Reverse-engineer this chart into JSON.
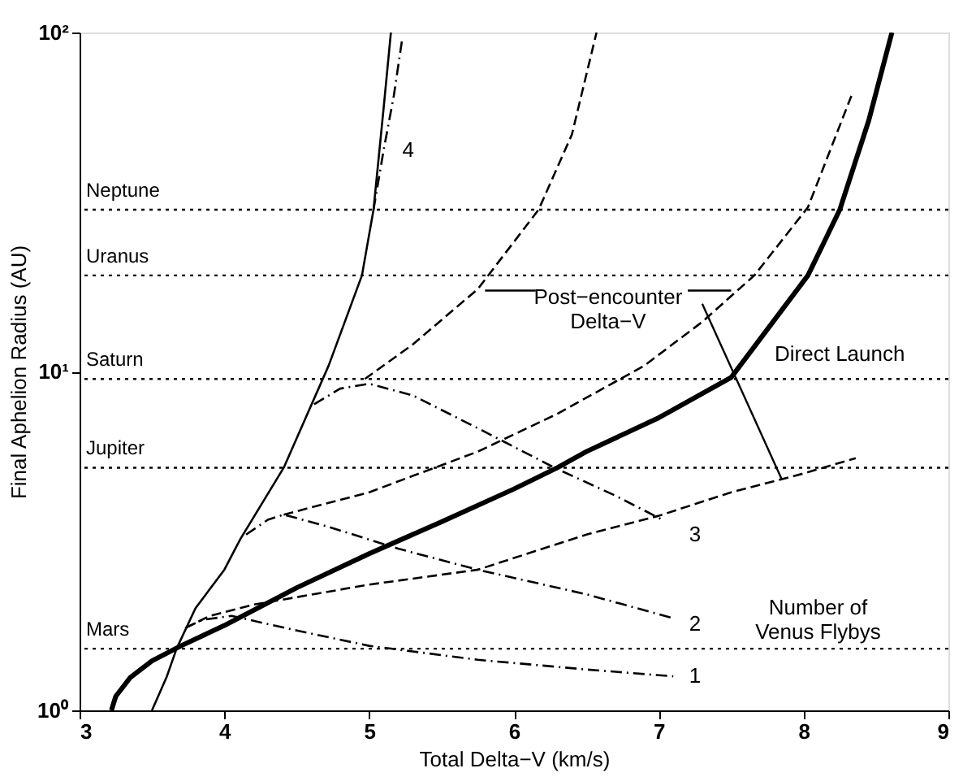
{
  "chart_data": {
    "type": "line",
    "xlabel": "Total Delta−V (km/s)",
    "ylabel": "Final Aphelion Radius (AU)",
    "log": "y",
    "xlim": [
      3,
      9
    ],
    "xticks": [
      3,
      4,
      5,
      6,
      7,
      8,
      9
    ],
    "ylim": [
      1,
      100
    ],
    "yticks": [
      {
        "value": 1,
        "label": "10⁰"
      },
      {
        "value": 10,
        "label": "10¹"
      },
      {
        "value": 100,
        "label": "10²"
      }
    ],
    "grid": false,
    "marker": "none",
    "series": [
      {
        "color": "#000000",
        "line_style": "solid",
        "x": [
          3.22,
          3.25,
          3.35,
          3.5,
          3.7,
          4,
          4.5,
          5,
          5.5,
          6,
          6.3,
          6.5,
          7,
          7.5,
          8.03,
          8.25,
          8.45,
          8.61
        ],
        "values": [
          1.0,
          1.1,
          1.25,
          1.4,
          1.55,
          1.78,
          2.3,
          2.9,
          3.6,
          4.5,
          5.2,
          5.8,
          7.3,
          9.6,
          19.2,
          30,
          55,
          100
        ]
      },
      {
        "color": "#000000",
        "line_style": "solid",
        "x": [
          3.5,
          3.6,
          3.67,
          3.8,
          4,
          4.11,
          4.41,
          4.72,
          4.95,
          5.03,
          5.1,
          5.15
        ],
        "values": [
          1.0,
          1.25,
          1.52,
          2.0,
          2.6,
          3.2,
          5.2,
          10.4,
          19.2,
          30,
          60,
          100
        ]
      },
      {
        "color": "#000000",
        "line_style": "dashdot",
        "x": [
          3.73,
          3.85,
          4.05,
          4.5,
          5,
          5.75,
          6.5,
          7.1
        ],
        "values": [
          1.75,
          1.85,
          1.9,
          1.72,
          1.55,
          1.41,
          1.32,
          1.26
        ]
      },
      {
        "color": "#000000",
        "line_style": "dashdot",
        "x": [
          4.15,
          4.3,
          4.41,
          4.7,
          5.2,
          5.75,
          6.5,
          7.1
        ],
        "values": [
          3.3,
          3.65,
          3.78,
          3.5,
          3.0,
          2.6,
          2.2,
          1.87
        ]
      },
      {
        "color": "#000000",
        "line_style": "dashdot",
        "x": [
          4.62,
          4.8,
          5.0,
          5.3,
          5.75,
          6.28,
          6.7,
          7.02
        ],
        "values": [
          8.0,
          8.9,
          9.2,
          8.5,
          6.8,
          5.2,
          4.3,
          3.66
        ]
      },
      {
        "color": "#000000",
        "line_style": "dashdot",
        "x": [
          5.03,
          5.1,
          5.17,
          5.23
        ],
        "values": [
          30,
          45,
          65,
          97
        ]
      },
      {
        "color": "#000000",
        "line_style": "dashed",
        "x": [
          3.73,
          3.9,
          4.2,
          5,
          5.75,
          6.5,
          7,
          7.5,
          8,
          8.36
        ],
        "values": [
          1.75,
          1.9,
          2.05,
          2.35,
          2.6,
          3.3,
          3.75,
          4.4,
          5.0,
          5.55
        ]
      },
      {
        "color": "#000000",
        "line_style": "dashed",
        "x": [
          4.41,
          5,
          5.75,
          6.3,
          6.9,
          7.3,
          7.66,
          8.03,
          8.33
        ],
        "values": [
          3.78,
          4.4,
          5.8,
          7.5,
          10.4,
          14,
          19.2,
          30.5,
          65
        ]
      },
      {
        "color": "#000000",
        "line_style": "dashed",
        "x": [
          4.97,
          5.3,
          5.75,
          6.17,
          6.4,
          6.57
        ],
        "values": [
          9.5,
          12,
          17.5,
          30,
          50,
          100
        ]
      }
    ],
    "ref_lines": [
      {
        "axis": "y",
        "value": 30,
        "label": "Neptune",
        "line_style": "dotted"
      },
      {
        "axis": "y",
        "value": 19.2,
        "label": "Uranus",
        "line_style": "dotted"
      },
      {
        "axis": "y",
        "value": 9.5,
        "label": "Saturn",
        "line_style": "dotted"
      },
      {
        "axis": "y",
        "value": 5.2,
        "label": "Jupiter",
        "line_style": "dotted"
      },
      {
        "axis": "y",
        "value": 1.52,
        "label": "Mars",
        "line_style": "dotted"
      }
    ],
    "annotations": [
      "1",
      "2",
      "3",
      "4",
      {
        "text": "Post−encounter\nDelta−V",
        "x": 7.85,
        "y": 4.8
      },
      "Direct Launch",
      "Number of\nVenus Flybys"
    ]
  }
}
